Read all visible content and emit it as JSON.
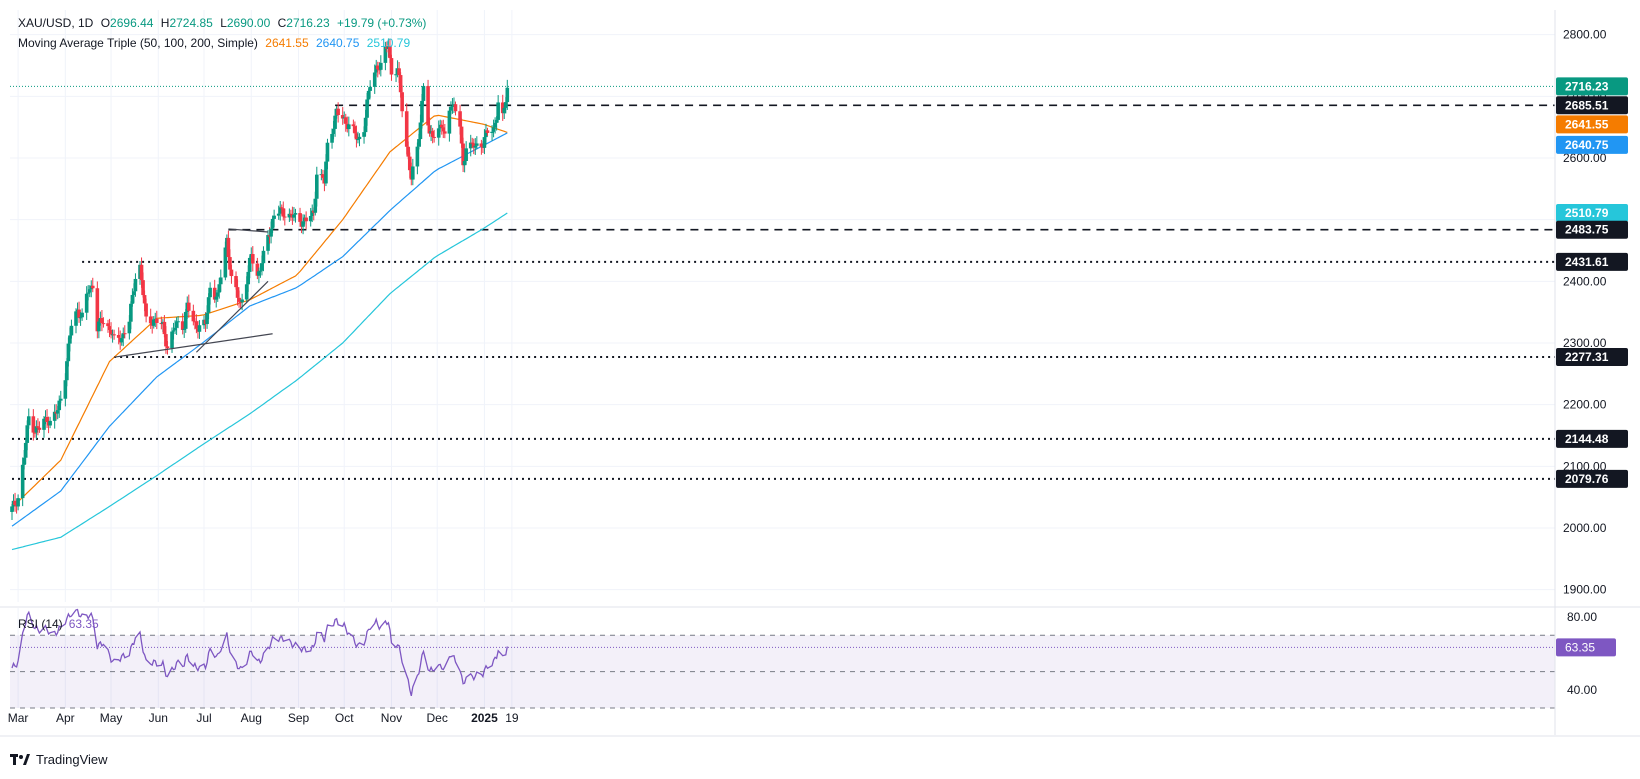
{
  "header": {
    "symbol": "XAU/USD, 1D",
    "open_label": "O",
    "open": "2696.44",
    "high_label": "H",
    "high": "2724.85",
    "low_label": "L",
    "low": "2690.00",
    "close_label": "C",
    "close": "2716.23",
    "change": "+19.79 (+0.73%)",
    "ma_title": "Moving Average Triple (50, 100, 200, Simple)",
    "ma50": "2641.55",
    "ma100": "2640.75",
    "ma200": "2510.79"
  },
  "rsi": {
    "title": "RSI (14)",
    "value": "63.35"
  },
  "brand": "TradingView",
  "colors": {
    "up": "#089981",
    "down": "#f23645",
    "ma50": "#f57c00",
    "ma100": "#2196f3",
    "ma200": "#26c6da",
    "rsi": "#7e57c2",
    "grid": "#f0f3fa",
    "text": "#131722"
  },
  "chart_data": [
    {
      "type": "candlestick",
      "title": "XAU/USD, 1D",
      "ylim": [
        1880,
        2840
      ],
      "y_ticks": [
        1900,
        2000,
        2100,
        2200,
        2300,
        2400,
        2500,
        2600,
        2700,
        2800
      ],
      "x_labels": [
        "Mar",
        "Apr",
        "May",
        "Jun",
        "Jul",
        "Aug",
        "Sep",
        "Oct",
        "Nov",
        "Dec",
        "2025",
        "19"
      ],
      "price_labels": [
        {
          "value": 2716.23,
          "text": "2716.23",
          "color": "#089981"
        },
        {
          "value": 2685.51,
          "text": "2685.51",
          "color": "#131722"
        },
        {
          "value": 2641.55,
          "text": "2641.55",
          "color": "#f57c00"
        },
        {
          "value": 2640.75,
          "text": "2640.75",
          "color": "#2196f3"
        },
        {
          "value": 2510.79,
          "text": "2510.79",
          "color": "#26c6da"
        },
        {
          "value": 2483.75,
          "text": "2483.75",
          "color": "#131722"
        },
        {
          "value": 2431.61,
          "text": "2431.61",
          "color": "#131722"
        },
        {
          "value": 2277.31,
          "text": "2277.31",
          "color": "#131722"
        },
        {
          "value": 2144.48,
          "text": "2144.48",
          "color": "#131722"
        },
        {
          "value": 2079.76,
          "text": "2079.76",
          "color": "#131722"
        }
      ],
      "close_anchors": [
        [
          "2024-02-26",
          2030
        ],
        [
          "2024-03-01",
          2050
        ],
        [
          "2024-03-05",
          2115
        ],
        [
          "2024-03-08",
          2180
        ],
        [
          "2024-03-12",
          2160
        ],
        [
          "2024-03-15",
          2160
        ],
        [
          "2024-03-20",
          2180
        ],
        [
          "2024-03-22",
          2170
        ],
        [
          "2024-03-27",
          2190
        ],
        [
          "2024-04-01",
          2250
        ],
        [
          "2024-04-05",
          2330
        ],
        [
          "2024-04-09",
          2355
        ],
        [
          "2024-04-12",
          2340
        ],
        [
          "2024-04-16",
          2385
        ],
        [
          "2024-04-19",
          2395
        ],
        [
          "2024-04-22",
          2325
        ],
        [
          "2024-04-26",
          2337
        ],
        [
          "2024-05-01",
          2320
        ],
        [
          "2024-05-03",
          2302
        ],
        [
          "2024-05-08",
          2310
        ],
        [
          "2024-05-13",
          2335
        ],
        [
          "2024-05-17",
          2410
        ],
        [
          "2024-05-20",
          2425
        ],
        [
          "2024-05-24",
          2335
        ],
        [
          "2024-05-29",
          2338
        ],
        [
          "2024-06-04",
          2326
        ],
        [
          "2024-06-07",
          2295
        ],
        [
          "2024-06-12",
          2325
        ],
        [
          "2024-06-14",
          2333
        ],
        [
          "2024-06-18",
          2330
        ],
        [
          "2024-06-20",
          2360
        ],
        [
          "2024-06-24",
          2333
        ],
        [
          "2024-06-28",
          2326
        ],
        [
          "2024-07-02",
          2330
        ],
        [
          "2024-07-05",
          2392
        ],
        [
          "2024-07-10",
          2372
        ],
        [
          "2024-07-12",
          2410
        ],
        [
          "2024-07-16",
          2470
        ],
        [
          "2024-07-19",
          2400
        ],
        [
          "2024-07-25",
          2365
        ],
        [
          "2024-07-30",
          2410
        ],
        [
          "2024-08-01",
          2445
        ],
        [
          "2024-08-05",
          2410
        ],
        [
          "2024-08-08",
          2428
        ],
        [
          "2024-08-12",
          2472
        ],
        [
          "2024-08-16",
          2508
        ],
        [
          "2024-08-20",
          2512
        ],
        [
          "2024-08-23",
          2512
        ],
        [
          "2024-08-28",
          2505
        ],
        [
          "2024-09-02",
          2500
        ],
        [
          "2024-09-06",
          2497
        ],
        [
          "2024-09-11",
          2511
        ],
        [
          "2024-09-13",
          2578
        ],
        [
          "2024-09-18",
          2560
        ],
        [
          "2024-09-20",
          2622
        ],
        [
          "2024-09-26",
          2672
        ],
        [
          "2024-10-01",
          2663
        ],
        [
          "2024-10-04",
          2653
        ],
        [
          "2024-10-10",
          2630
        ],
        [
          "2024-10-14",
          2650
        ],
        [
          "2024-10-18",
          2720
        ],
        [
          "2024-10-22",
          2749
        ],
        [
          "2024-10-25",
          2747
        ],
        [
          "2024-10-30",
          2788
        ],
        [
          "2024-11-01",
          2736
        ],
        [
          "2024-11-05",
          2742
        ],
        [
          "2024-11-07",
          2706
        ],
        [
          "2024-11-12",
          2600
        ],
        [
          "2024-11-14",
          2565
        ],
        [
          "2024-11-18",
          2614
        ],
        [
          "2024-11-22",
          2715
        ],
        [
          "2024-11-26",
          2634
        ],
        [
          "2024-11-29",
          2643
        ],
        [
          "2024-12-04",
          2650
        ],
        [
          "2024-12-06",
          2633
        ],
        [
          "2024-12-10",
          2694
        ],
        [
          "2024-12-12",
          2680
        ],
        [
          "2024-12-16",
          2652
        ],
        [
          "2024-12-18",
          2587
        ],
        [
          "2024-12-20",
          2622
        ],
        [
          "2024-12-24",
          2617
        ],
        [
          "2024-12-27",
          2621
        ],
        [
          "2024-12-31",
          2625
        ],
        [
          "2025-01-03",
          2640
        ],
        [
          "2025-01-07",
          2648
        ],
        [
          "2025-01-09",
          2670
        ],
        [
          "2025-01-10",
          2690
        ],
        [
          "2025-01-13",
          2662
        ],
        [
          "2025-01-14",
          2677
        ],
        [
          "2025-01-15",
          2696
        ],
        [
          "2025-01-16",
          2716
        ]
      ],
      "moving_averages": [
        {
          "name": "MA 50",
          "color": "#f57c00",
          "anchors": [
            [
              "2024-02-26",
              2033
            ],
            [
              "2024-03-29",
              2110
            ],
            [
              "2024-04-30",
              2270
            ],
            [
              "2024-05-31",
              2340
            ],
            [
              "2024-06-30",
              2345
            ],
            [
              "2024-07-31",
              2370
            ],
            [
              "2024-08-31",
              2410
            ],
            [
              "2024-09-30",
              2500
            ],
            [
              "2024-10-31",
              2610
            ],
            [
              "2024-11-30",
              2670
            ],
            [
              "2024-12-31",
              2655
            ],
            [
              "2025-01-16",
              2641.55
            ]
          ]
        },
        {
          "name": "MA 100",
          "color": "#2196f3",
          "anchors": [
            [
              "2024-02-26",
              2003
            ],
            [
              "2024-03-29",
              2060
            ],
            [
              "2024-04-30",
              2165
            ],
            [
              "2024-05-31",
              2245
            ],
            [
              "2024-06-30",
              2300
            ],
            [
              "2024-07-31",
              2360
            ],
            [
              "2024-08-31",
              2390
            ],
            [
              "2024-09-30",
              2440
            ],
            [
              "2024-10-31",
              2515
            ],
            [
              "2024-11-30",
              2580
            ],
            [
              "2024-12-31",
              2620
            ],
            [
              "2025-01-16",
              2640.75
            ]
          ]
        },
        {
          "name": "MA 200",
          "color": "#26c6da",
          "anchors": [
            [
              "2024-02-26",
              1965
            ],
            [
              "2024-03-29",
              1985
            ],
            [
              "2024-04-30",
              2035
            ],
            [
              "2024-05-31",
              2085
            ],
            [
              "2024-06-30",
              2135
            ],
            [
              "2024-07-31",
              2185
            ],
            [
              "2024-08-31",
              2240
            ],
            [
              "2024-09-30",
              2300
            ],
            [
              "2024-10-31",
              2380
            ],
            [
              "2024-11-30",
              2440
            ],
            [
              "2024-12-31",
              2485
            ],
            [
              "2025-01-16",
              2510.79
            ]
          ]
        }
      ],
      "horizontal_levels": [
        {
          "value": 2685.51,
          "from": "2024-09-25",
          "style": "dashed"
        },
        {
          "value": 2483.75,
          "from": "2024-07-17",
          "style": "dashed"
        },
        {
          "value": 2431.61,
          "from": "2024-04-12",
          "style": "dotted"
        },
        {
          "value": 2277.31,
          "from": "2024-05-03",
          "style": "dotted"
        },
        {
          "value": 2144.48,
          "from": "2024-02-26",
          "style": "dotted"
        },
        {
          "value": 2079.76,
          "from": "2024-02-26",
          "style": "dotted"
        }
      ],
      "trendlines": [
        {
          "from": [
            "2024-05-03",
            2277
          ],
          "to": [
            "2024-08-15",
            2315
          ]
        },
        {
          "from": [
            "2024-06-26",
            2285
          ],
          "to": [
            "2024-08-12",
            2400
          ]
        },
        {
          "from": [
            "2024-07-17",
            2485
          ],
          "to": [
            "2024-08-12",
            2480
          ]
        }
      ]
    },
    {
      "type": "line",
      "title": "RSI (14)",
      "ylim": [
        30,
        85
      ],
      "y_ticks": [
        40,
        80
      ],
      "bands": [
        30,
        50,
        70
      ],
      "current": 63.35,
      "anchors": [
        [
          "2024-02-26",
          52
        ],
        [
          "2024-03-01",
          55
        ],
        [
          "2024-03-05",
          75
        ],
        [
          "2024-03-08",
          82
        ],
        [
          "2024-03-12",
          74
        ],
        [
          "2024-03-15",
          73
        ],
        [
          "2024-03-20",
          74
        ],
        [
          "2024-03-22",
          70
        ],
        [
          "2024-03-27",
          72
        ],
        [
          "2024-04-01",
          78
        ],
        [
          "2024-04-05",
          82
        ],
        [
          "2024-04-09",
          83
        ],
        [
          "2024-04-12",
          80
        ],
        [
          "2024-04-16",
          81
        ],
        [
          "2024-04-19",
          80
        ],
        [
          "2024-04-22",
          64
        ],
        [
          "2024-04-26",
          66
        ],
        [
          "2024-05-01",
          57
        ],
        [
          "2024-05-03",
          55
        ],
        [
          "2024-05-08",
          58
        ],
        [
          "2024-05-13",
          60
        ],
        [
          "2024-05-17",
          69
        ],
        [
          "2024-05-20",
          70
        ],
        [
          "2024-05-24",
          55
        ],
        [
          "2024-05-29",
          55
        ],
        [
          "2024-06-04",
          54
        ],
        [
          "2024-06-07",
          47
        ],
        [
          "2024-06-12",
          53
        ],
        [
          "2024-06-14",
          55
        ],
        [
          "2024-06-18",
          54
        ],
        [
          "2024-06-20",
          59
        ],
        [
          "2024-06-24",
          53
        ],
        [
          "2024-06-28",
          52
        ],
        [
          "2024-07-02",
          53
        ],
        [
          "2024-07-05",
          62
        ],
        [
          "2024-07-10",
          58
        ],
        [
          "2024-07-12",
          63
        ],
        [
          "2024-07-16",
          70
        ],
        [
          "2024-07-19",
          58
        ],
        [
          "2024-07-25",
          51
        ],
        [
          "2024-07-30",
          57
        ],
        [
          "2024-08-01",
          62
        ],
        [
          "2024-08-05",
          55
        ],
        [
          "2024-08-08",
          57
        ],
        [
          "2024-08-12",
          63
        ],
        [
          "2024-08-16",
          69
        ],
        [
          "2024-08-20",
          68
        ],
        [
          "2024-08-23",
          68
        ],
        [
          "2024-08-28",
          65
        ],
        [
          "2024-09-02",
          63
        ],
        [
          "2024-09-06",
          62
        ],
        [
          "2024-09-11",
          63
        ],
        [
          "2024-09-13",
          72
        ],
        [
          "2024-09-18",
          68
        ],
        [
          "2024-09-20",
          74
        ],
        [
          "2024-09-26",
          78
        ],
        [
          "2024-10-01",
          75
        ],
        [
          "2024-10-04",
          71
        ],
        [
          "2024-10-10",
          64
        ],
        [
          "2024-10-14",
          66
        ],
        [
          "2024-10-18",
          75
        ],
        [
          "2024-10-22",
          77
        ],
        [
          "2024-10-25",
          74
        ],
        [
          "2024-10-30",
          78
        ],
        [
          "2024-11-01",
          65
        ],
        [
          "2024-11-05",
          65
        ],
        [
          "2024-11-07",
          60
        ],
        [
          "2024-11-12",
          44
        ],
        [
          "2024-11-14",
          38
        ],
        [
          "2024-11-18",
          47
        ],
        [
          "2024-11-22",
          61
        ],
        [
          "2024-11-26",
          50
        ],
        [
          "2024-11-29",
          52
        ],
        [
          "2024-12-04",
          53
        ],
        [
          "2024-12-06",
          51
        ],
        [
          "2024-12-10",
          60
        ],
        [
          "2024-12-12",
          57
        ],
        [
          "2024-12-16",
          52
        ],
        [
          "2024-12-18",
          42
        ],
        [
          "2024-12-20",
          48
        ],
        [
          "2024-12-24",
          47
        ],
        [
          "2024-12-27",
          48
        ],
        [
          "2024-12-31",
          49
        ],
        [
          "2025-01-03",
          53
        ],
        [
          "2025-01-07",
          55
        ],
        [
          "2025-01-09",
          59
        ],
        [
          "2025-01-10",
          62
        ],
        [
          "2025-01-13",
          57
        ],
        [
          "2025-01-14",
          59
        ],
        [
          "2025-01-15",
          61
        ],
        [
          "2025-01-16",
          63.35
        ]
      ]
    }
  ]
}
